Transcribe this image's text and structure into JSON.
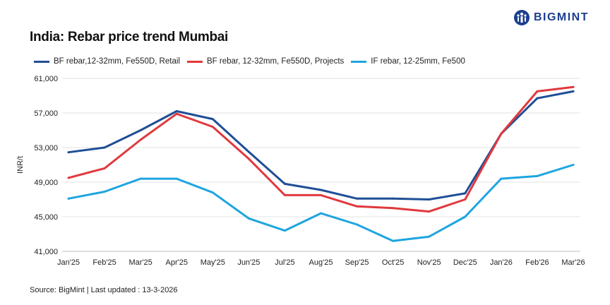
{
  "header": {
    "title": "India: Rebar price trend Mumbai",
    "logo_text": "BIGMINT",
    "logo_icon": "bigmint-logo-icon"
  },
  "footer": {
    "source": "Source: BigMint | Last updated : 13-3-2026"
  },
  "chart_data": {
    "type": "line",
    "title": "India: Rebar price trend Mumbai",
    "xlabel": "",
    "ylabel": "INR/t",
    "ylim": [
      41000,
      61000
    ],
    "yticks": [
      41000,
      45000,
      49000,
      53000,
      57000,
      61000
    ],
    "ytick_labels": [
      "41,000",
      "45,000",
      "49,000",
      "53,000",
      "57,000",
      "61,000"
    ],
    "grid": true,
    "legend_position": "top-left",
    "categories": [
      "Jan'25",
      "Feb'25",
      "Mar'25",
      "Apr'25",
      "May'25",
      "Jun'25",
      "Jul'25",
      "Aug'25",
      "Sep'25",
      "Oct'25",
      "Nov'25",
      "Dec'25",
      "Jan'26",
      "Feb'26",
      "Mar'26"
    ],
    "series": [
      {
        "name": "BF rebar,12-32mm, Fe550D, Retail",
        "color": "#1f4e96",
        "values": [
          52450,
          53000,
          55000,
          57200,
          56300,
          52500,
          48800,
          48100,
          47100,
          47100,
          47000,
          47700,
          54600,
          58700,
          59500
        ]
      },
      {
        "name": "BF rebar, 12-32mm, Fe550D, Projects",
        "color": "#e0393e",
        "values": [
          49500,
          50600,
          53900,
          56900,
          55400,
          51700,
          47500,
          47500,
          46200,
          46000,
          45600,
          47000,
          54600,
          59500,
          60000
        ]
      },
      {
        "name": "IF rebar, 12-25mm, Fe500",
        "color": "#1ea5e0",
        "values": [
          47100,
          47900,
          49400,
          49400,
          47800,
          44800,
          43400,
          45400,
          44100,
          42200,
          42700,
          45000,
          49400,
          49700,
          51000
        ]
      }
    ]
  }
}
